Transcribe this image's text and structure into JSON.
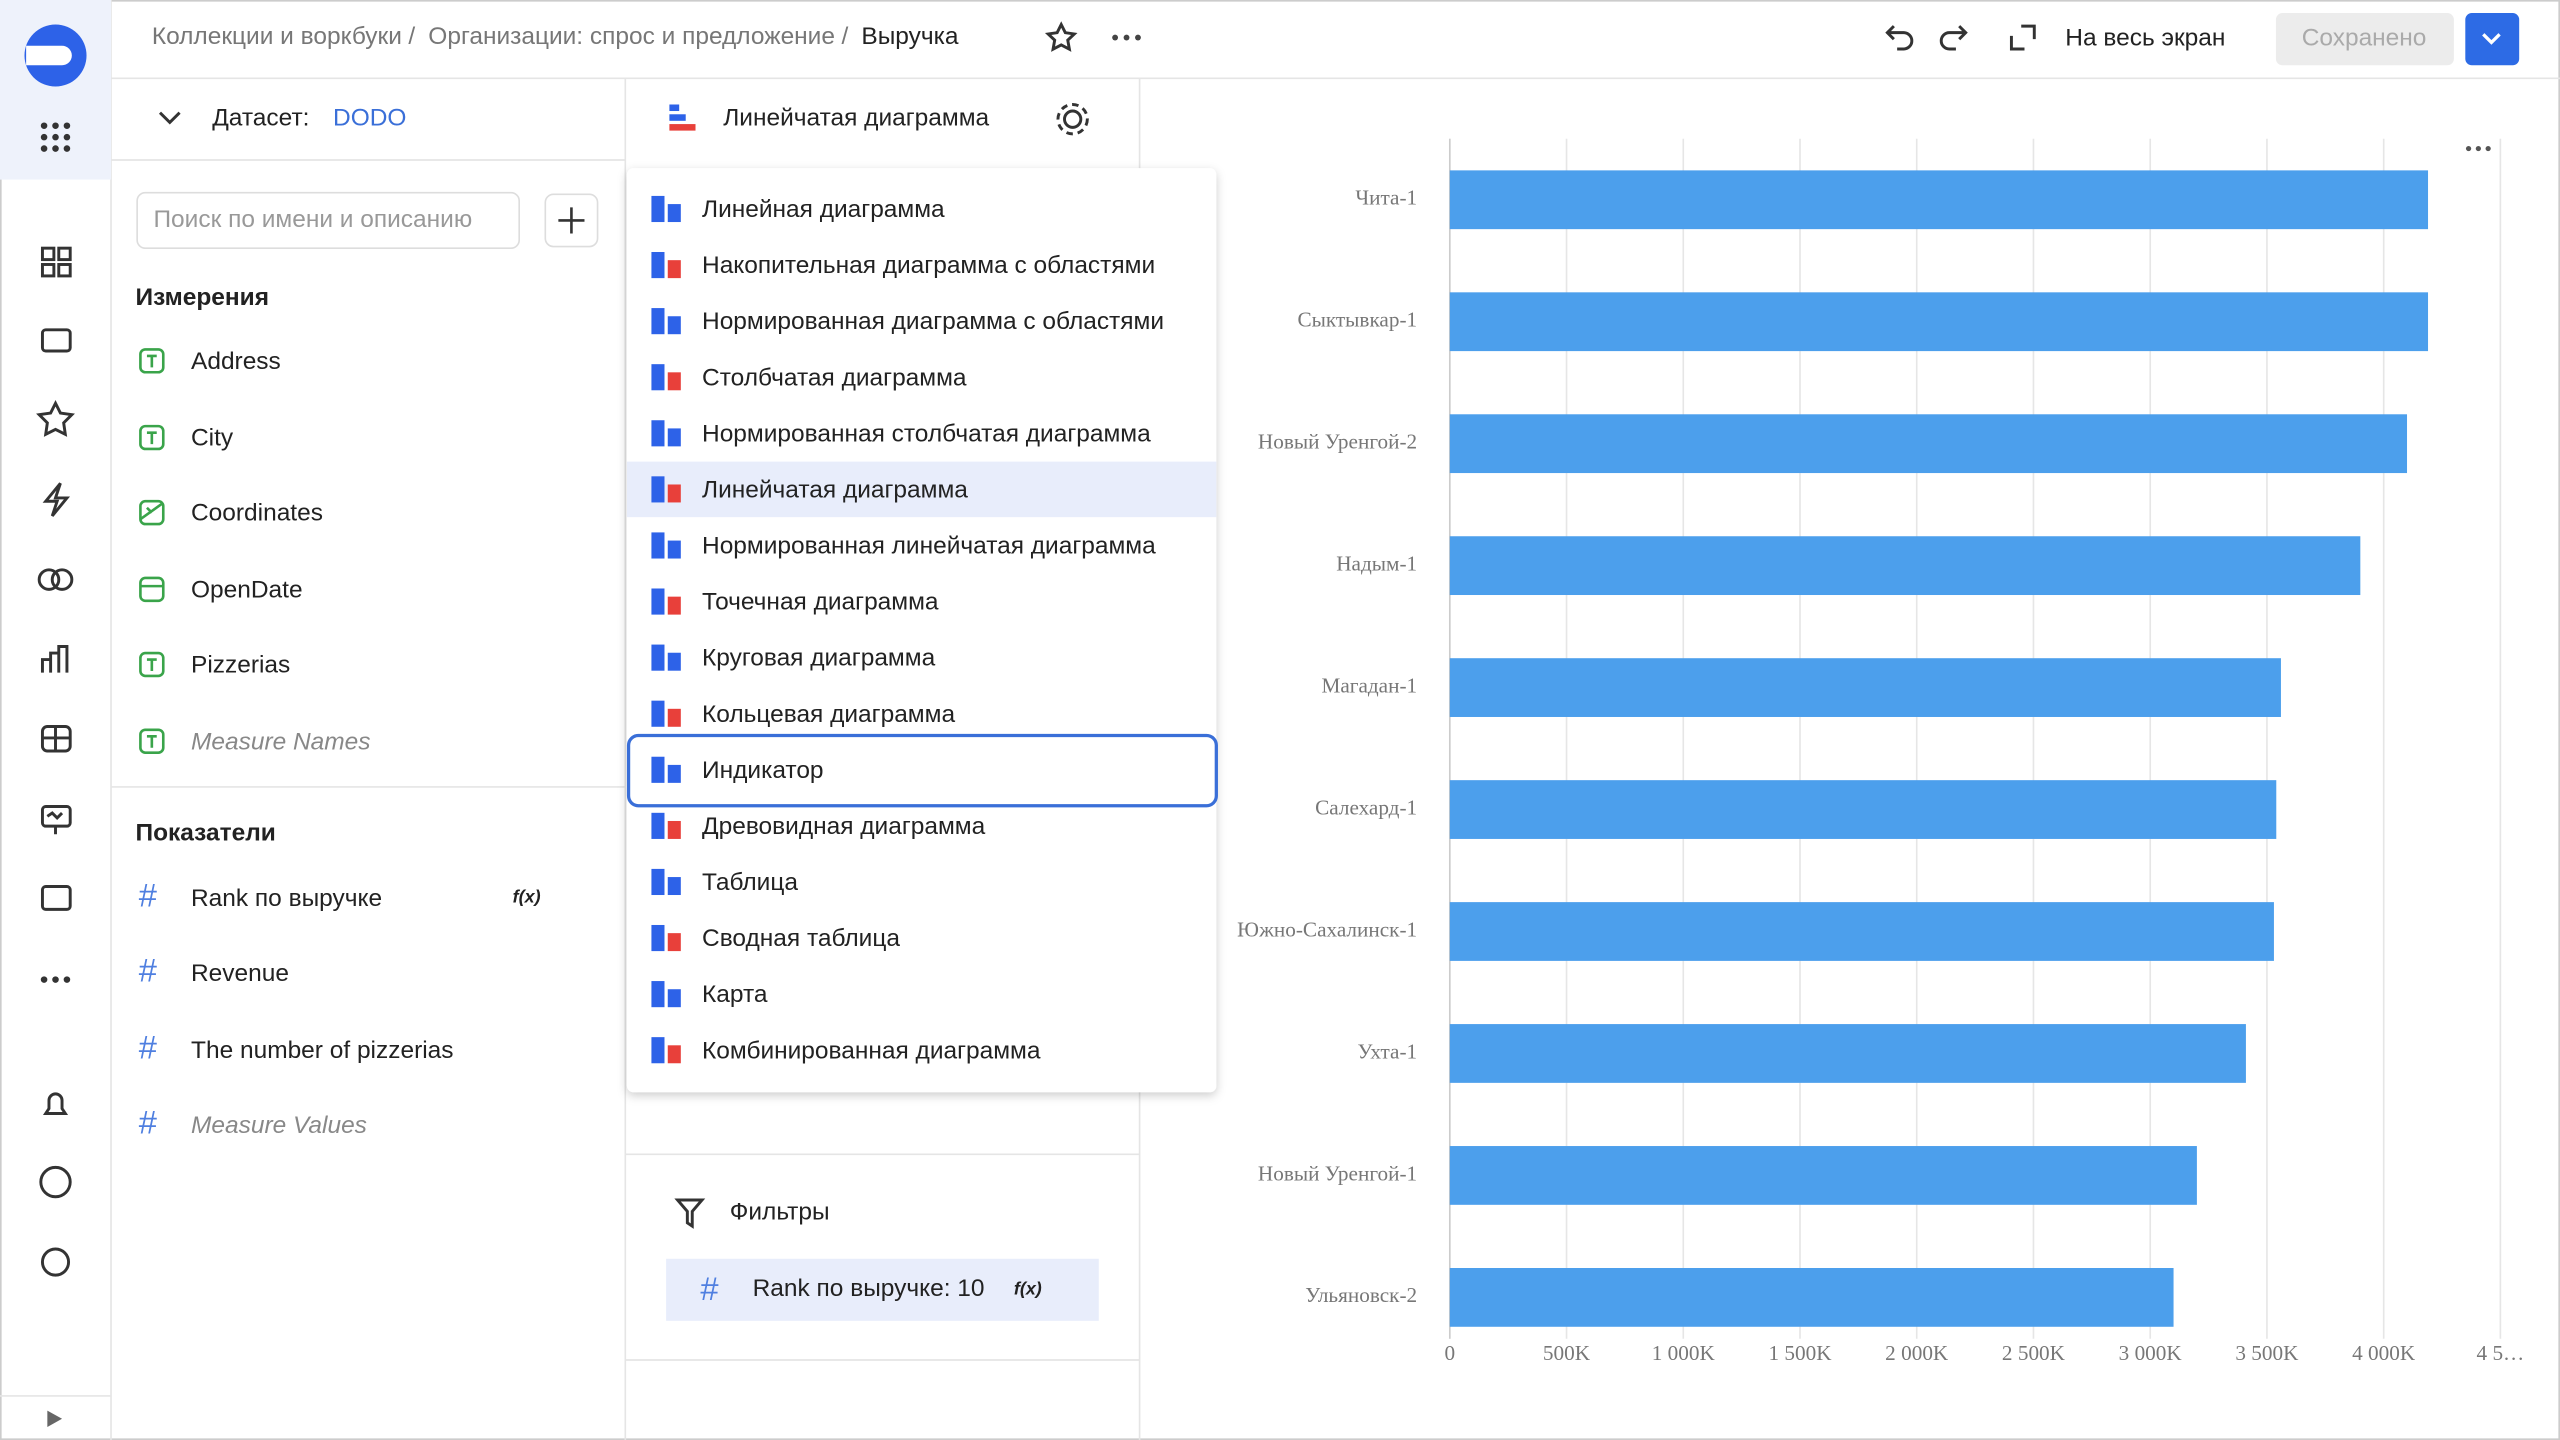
{
  "header": {
    "breadcrumbs": [
      "Коллекции и воркбуки",
      "Организации: спрос и предложение",
      "Выручка"
    ],
    "separator": "/",
    "fullscreen": "На весь экран",
    "saved": "Сохранено"
  },
  "dataset": {
    "label": "Датасет:",
    "name": "DODO",
    "search_placeholder": "Поиск по имени и описанию",
    "dimensions_title": "Измерения",
    "dimensions": [
      "Address",
      "City",
      "Coordinates",
      "OpenDate",
      "Pizzerias",
      "Measure Names"
    ],
    "measures_title": "Показатели",
    "measures": [
      "Rank по выручке",
      "Revenue",
      "The number of pizzerias",
      "Measure Values"
    ],
    "formula_badge": "f(x)"
  },
  "visualization": {
    "current": "Линейчатая диаграмма",
    "menu": [
      "Линейная диаграмма",
      "Накопительная диаграмма с областями",
      "Нормированная диаграмма с областями",
      "Столбчатая диаграмма",
      "Нормированная столбчатая диаграмма",
      "Линейчатая диаграмма",
      "Нормированная линейчатая диаграмма",
      "Точечная диаграмма",
      "Круговая диаграмма",
      "Кольцевая диаграмма",
      "Индикатор",
      "Древовидная диаграмма",
      "Таблица",
      "Сводная таблица",
      "Карта",
      "Комбинированная диаграмма"
    ],
    "selected": 5,
    "focused": 10,
    "filters_title": "Фильтры",
    "filter": "Rank по выручке: 10"
  },
  "chart_data": {
    "type": "bar",
    "orientation": "horizontal",
    "categories": [
      "Чита-1",
      "Сыктывкар-1",
      "Новый Уренгой-2",
      "Надым-1",
      "Магадан-1",
      "Салехард-1",
      "Южно-Сахалинск-1",
      "Ухта-1",
      "Новый Уренгой-1",
      "Ульяновск-2"
    ],
    "values": [
      4190000,
      4190000,
      4100000,
      3900000,
      3560000,
      3540000,
      3530000,
      3410000,
      3200000,
      3100000
    ],
    "color": "#4c9fec",
    "xlim": [
      0,
      4500000
    ],
    "xticks": [
      0,
      {
        "value": 500000,
        "label": "500K"
      },
      {
        "value": 1000000,
        "label": "1 000K"
      },
      {
        "value": 1500000,
        "label": "1 500K"
      },
      {
        "value": 2000000,
        "label": "2 000K"
      },
      {
        "value": 2500000,
        "label": "2 500K"
      },
      {
        "value": 3000000,
        "label": "3 000K"
      },
      {
        "value": 3500000,
        "label": "3 500K"
      },
      {
        "value": 4000000,
        "label": "4 000K"
      },
      {
        "value": 4500000,
        "label": "4 5…"
      }
    ],
    "grid": true
  }
}
